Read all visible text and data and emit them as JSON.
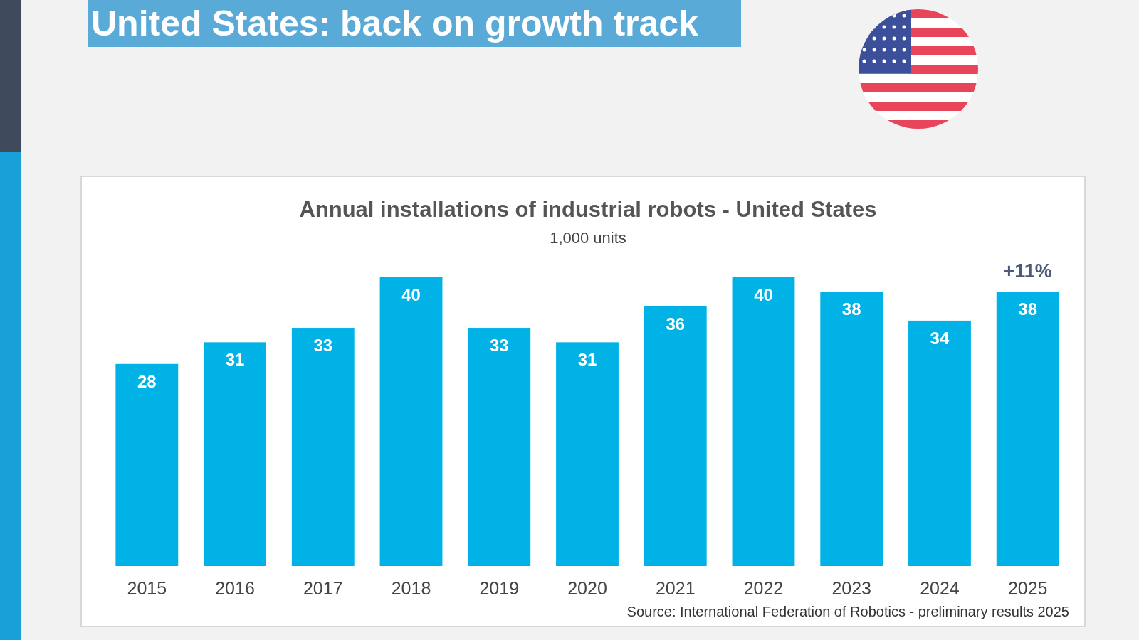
{
  "chart_data": {
    "type": "bar",
    "title": "United States: back on growth track",
    "subtitle": "Annual installations of industrial robots - United States",
    "ylabel": "1,000 units",
    "categories": [
      "2015",
      "2016",
      "2017",
      "2018",
      "2019",
      "2020",
      "2021",
      "2022",
      "2023",
      "2024",
      "2025"
    ],
    "values": [
      28,
      31,
      33,
      40,
      33,
      31,
      36,
      40,
      38,
      34,
      38
    ],
    "color": "#00b2e6",
    "data_labels": true,
    "annotations": [
      {
        "text": "+11%",
        "x": "2025",
        "y": 38
      },
      "Source: International Federation of Robotics - preliminary results 2025"
    ]
  }
}
